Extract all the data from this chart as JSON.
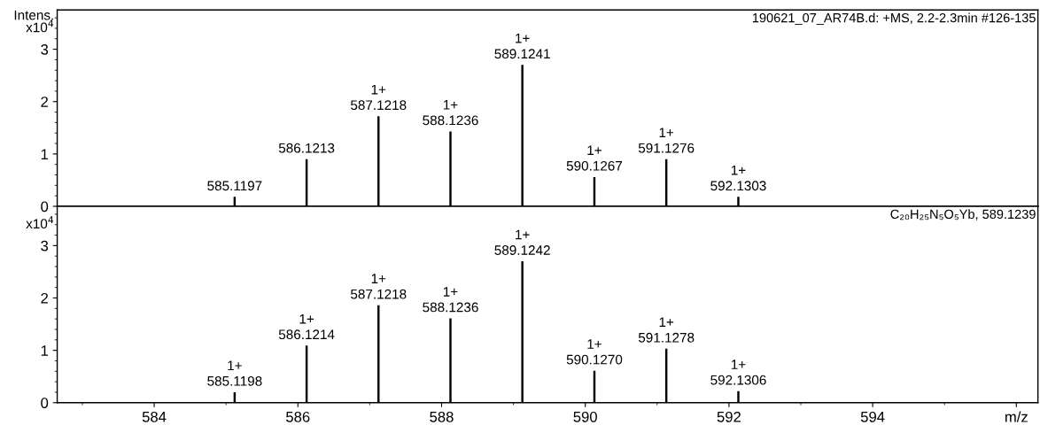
{
  "chart_data": [
    {
      "type": "bar",
      "ylabel": "Intens.",
      "x": [
        585.1197,
        586.1213,
        587.1218,
        588.1236,
        589.1241,
        590.1267,
        591.1276,
        592.1303
      ],
      "series": [
        {
          "color": "#000000",
          "values": [
            0.18,
            0.9,
            1.72,
            1.43,
            2.7,
            0.56,
            0.9,
            0.18
          ]
        }
      ],
      "xlim": [
        582.65,
        596.3
      ],
      "ylim": [
        0,
        3.75
      ],
      "yticks": [
        0,
        1,
        2,
        3
      ],
      "tick_labels": "y",
      "grid": false,
      "legend": false,
      "annotations": [
        "x10$^{4}$",
        "190621_07_AR74B.d: +MS, 2.2-2.3min #126-135",
        {
          "text": "585.1197",
          "x": 585.1197,
          "y": 0.18
        },
        {
          "text": "586.1213",
          "x": 586.1213,
          "y": 0.9
        },
        {
          "text": "1+\n587.1218",
          "x": 587.1218,
          "y": 1.72
        },
        {
          "text": "1+\n588.1236",
          "x": 588.1236,
          "y": 1.43
        },
        {
          "text": "1+\n589.1241",
          "x": 589.1241,
          "y": 2.7
        },
        {
          "text": "1+\n590.1267",
          "x": 590.1267,
          "y": 0.56
        },
        {
          "text": "1+\n591.1276",
          "x": 591.1276,
          "y": 0.9
        },
        {
          "text": "1+\n592.1303",
          "x": 592.1303,
          "y": 0.18
        }
      ]
    },
    {
      "type": "bar",
      "x": [
        585.1198,
        586.1214,
        587.1218,
        588.1236,
        589.1242,
        590.127,
        591.1278,
        592.1306
      ],
      "series": [
        {
          "color": "#000000",
          "values": [
            0.2,
            1.09,
            1.86,
            1.61,
            2.7,
            0.61,
            1.03,
            0.22
          ]
        }
      ],
      "xlim": [
        582.65,
        596.3
      ],
      "xticks": [
        584,
        586,
        588,
        590,
        592,
        594,
        {
          "value": 596,
          "label": "m/z"
        }
      ],
      "ylim": [
        0,
        3.75
      ],
      "yticks": [
        0,
        1,
        2,
        3
      ],
      "grid": false,
      "legend": false,
      "annotations": [
        "x10$^{4}$",
        "C₂₀H₂₅N₅O₅Yb, 589.1239",
        {
          "text": "1+\n585.1198",
          "x": 585.1198,
          "y": 0.2
        },
        {
          "text": "1+\n586.1214",
          "x": 586.1214,
          "y": 1.09
        },
        {
          "text": "1+\n587.1218",
          "x": 587.1218,
          "y": 1.86
        },
        {
          "text": "1+\n588.1236",
          "x": 588.1236,
          "y": 1.61
        },
        {
          "text": "1+\n589.1242",
          "x": 589.1242,
          "y": 2.7
        },
        {
          "text": "1+\n590.1270",
          "x": 590.127,
          "y": 0.61
        },
        {
          "text": "1+\n591.1278",
          "x": 591.1278,
          "y": 1.03
        },
        {
          "text": "1+\n592.1306",
          "x": 592.1306,
          "y": 0.22
        }
      ]
    }
  ]
}
